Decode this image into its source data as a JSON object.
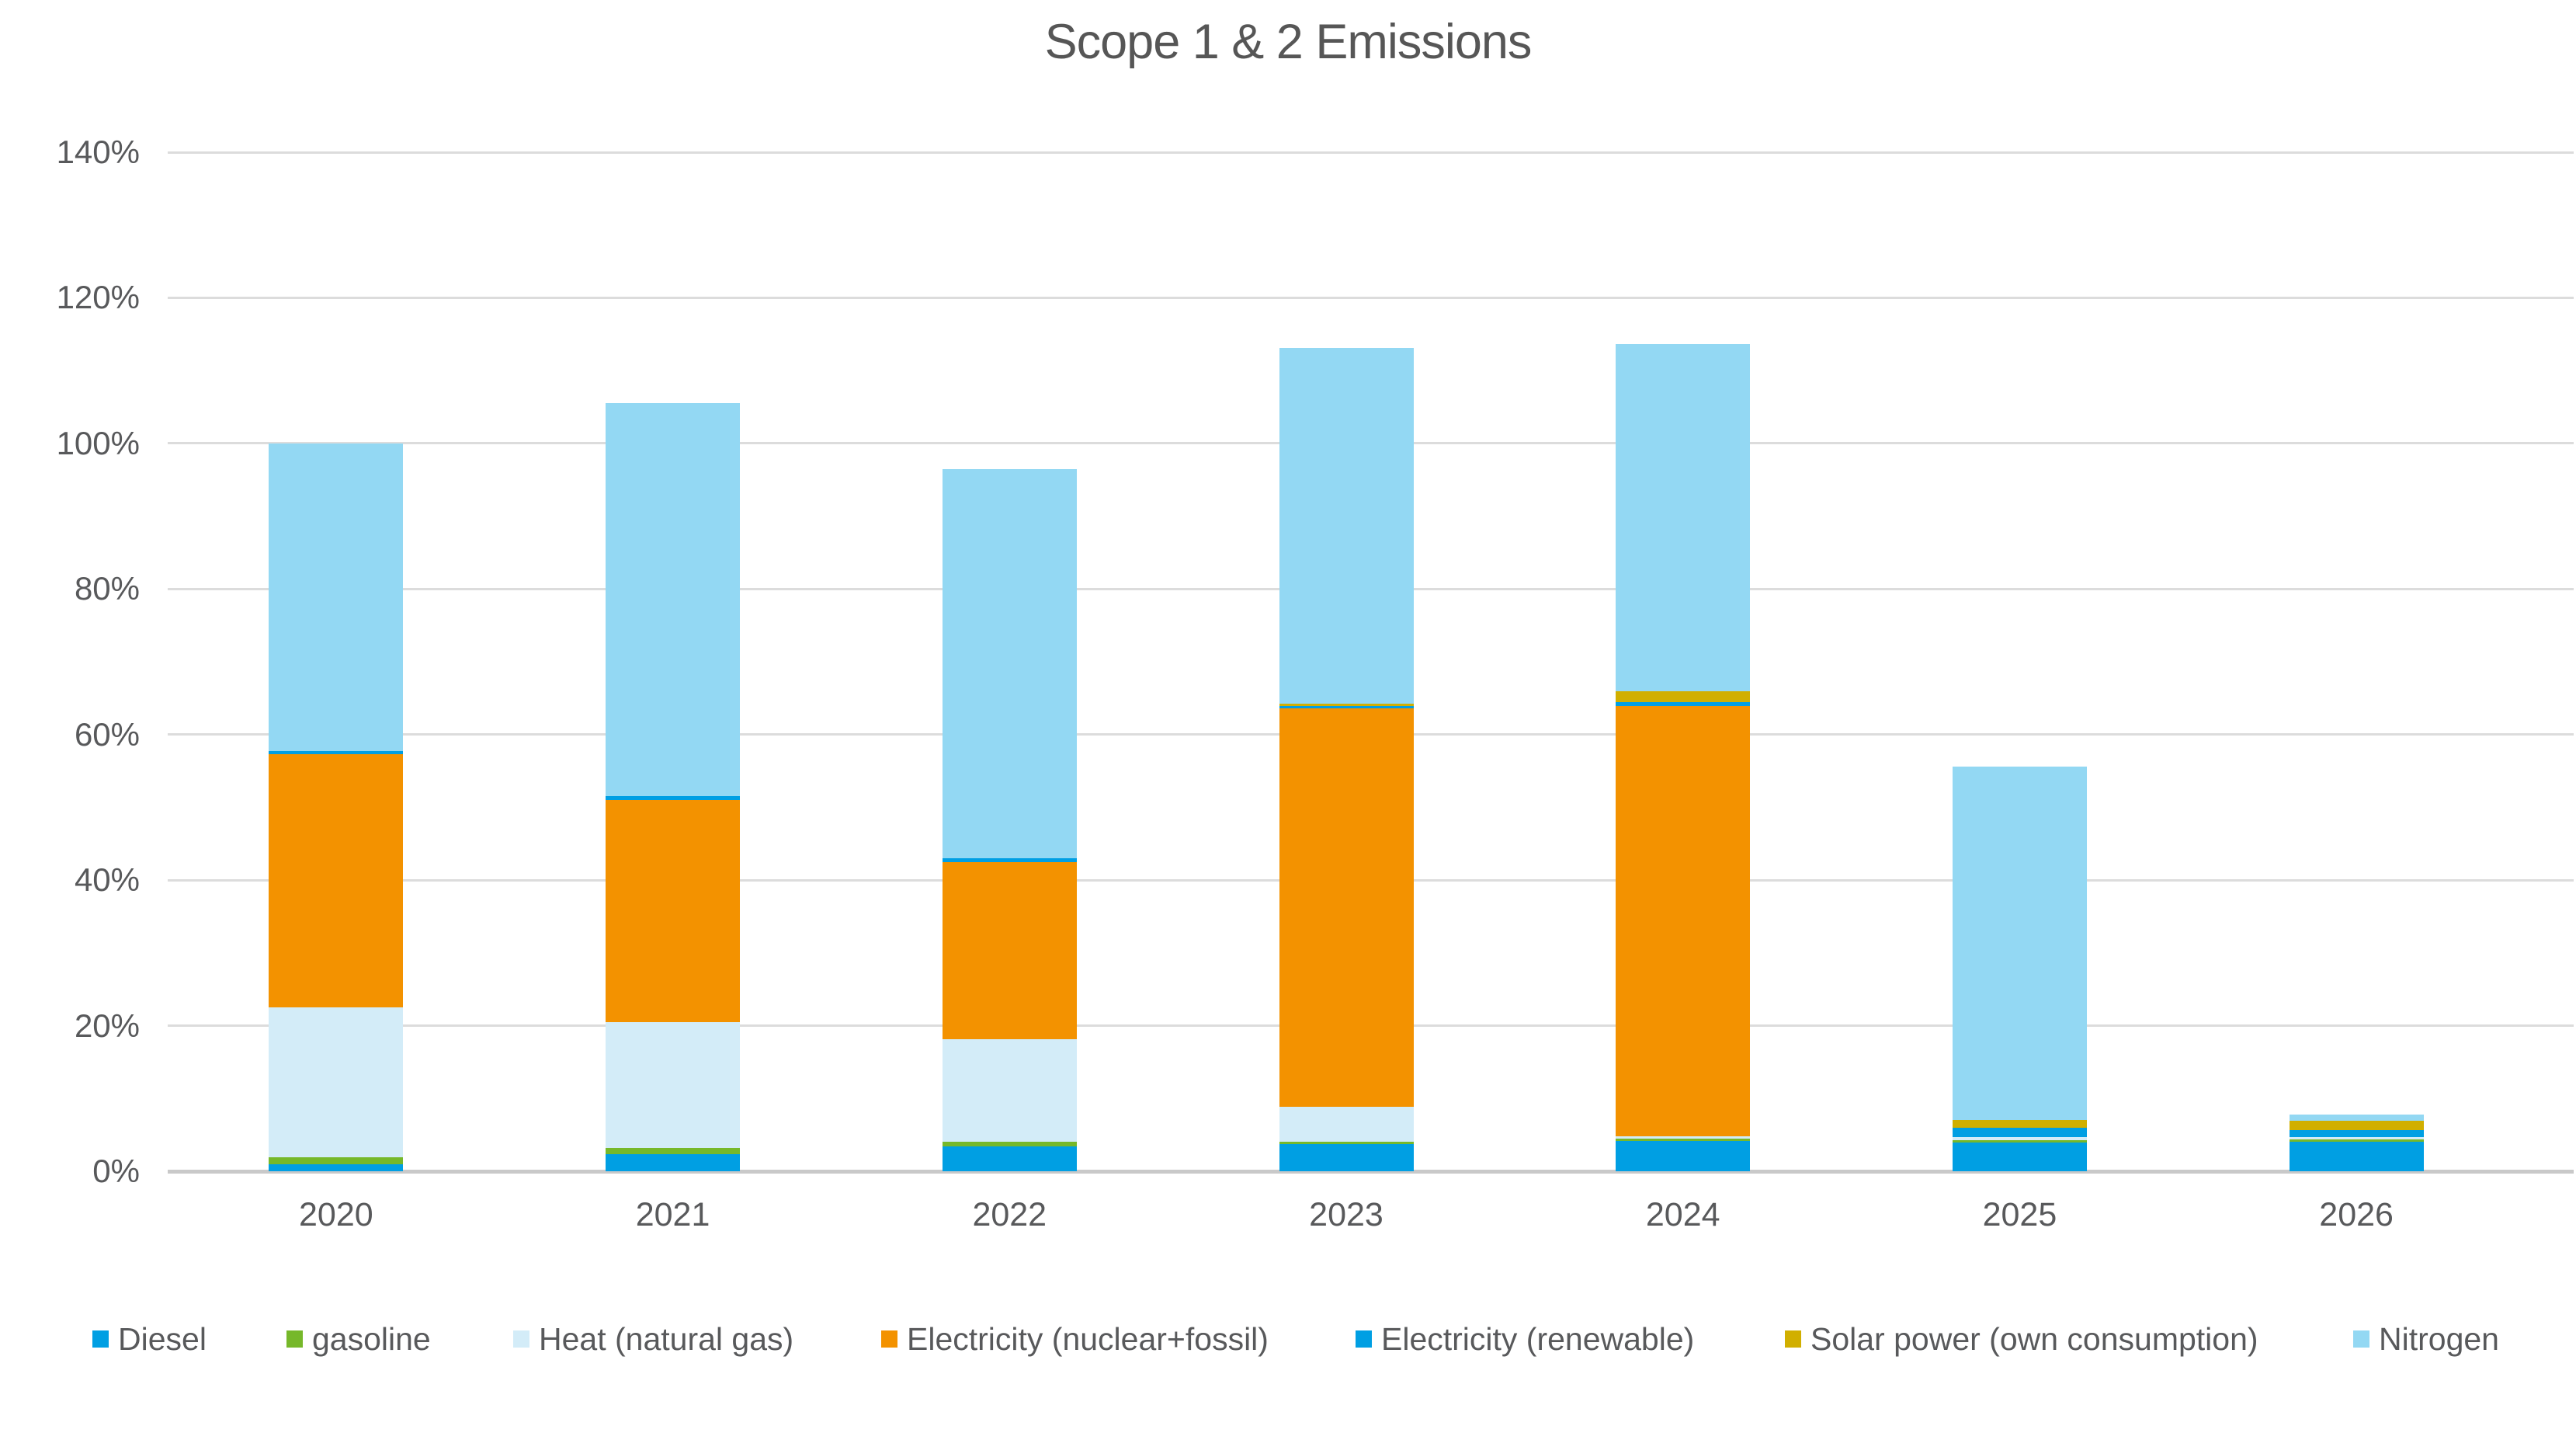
{
  "title": "Scope 1 & 2 Emissions",
  "colors": {
    "diesel": "#009fe3",
    "gasoline": "#76b82a",
    "heat_natural_gas": "#d3ecf8",
    "electricity_nuclear_fossil": "#f39200",
    "electricity_renewable": "#009fe3",
    "solar_power": "#d1af00",
    "nitrogen": "#93d8f3",
    "gridline": "#dcdcdc",
    "axis_line": "#c9c9c9",
    "text": "#58595b"
  },
  "chart_data": {
    "type": "bar",
    "stacked": true,
    "title": "Scope 1 & 2 Emissions",
    "unit": "%",
    "categories": [
      "2020",
      "2021",
      "2022",
      "2023",
      "2024",
      "2025",
      "2026"
    ],
    "series": [
      {
        "name": "Diesel",
        "color": "#009fe3",
        "values": [
          1.0,
          2.3,
          3.4,
          3.7,
          4.2,
          4.0,
          4.1
        ]
      },
      {
        "name": "gasoline",
        "color": "#76b82a",
        "values": [
          0.9,
          0.9,
          0.7,
          0.4,
          0.3,
          0.3,
          0.3
        ]
      },
      {
        "name": "Heat (natural gas)",
        "color": "#d3ecf8",
        "values": [
          20.6,
          17.3,
          14.0,
          4.8,
          0.3,
          0.4,
          0.3
        ]
      },
      {
        "name": "Electricity (nuclear+fossil)",
        "color": "#f39200",
        "values": [
          34.8,
          30.5,
          24.4,
          54.7,
          59.1,
          0,
          0
        ]
      },
      {
        "name": "Electricity (renewable)",
        "color": "#009fe3",
        "values": [
          0.4,
          0.5,
          0.5,
          0.3,
          0.6,
          1.3,
          1.0
        ]
      },
      {
        "name": "Solar power (own consumption)",
        "color": "#d1af00",
        "values": [
          0,
          0,
          0,
          0.3,
          1.4,
          1.1,
          1.2
        ]
      },
      {
        "name": "Nitrogen",
        "color": "#93d8f3",
        "values": [
          42.3,
          54.0,
          53.5,
          48.9,
          47.8,
          48.5,
          0.9
        ]
      }
    ],
    "totals": [
      100.0,
      105.5,
      96.5,
      113.1,
      113.7,
      55.6,
      7.8
    ],
    "ylim": [
      0,
      140
    ],
    "ytick_step": 20,
    "ytick_labels": [
      "0%",
      "20%",
      "40%",
      "60%",
      "80%",
      "100%",
      "120%",
      "140%"
    ],
    "grid": "horizontal",
    "legend_position": "bottom"
  }
}
